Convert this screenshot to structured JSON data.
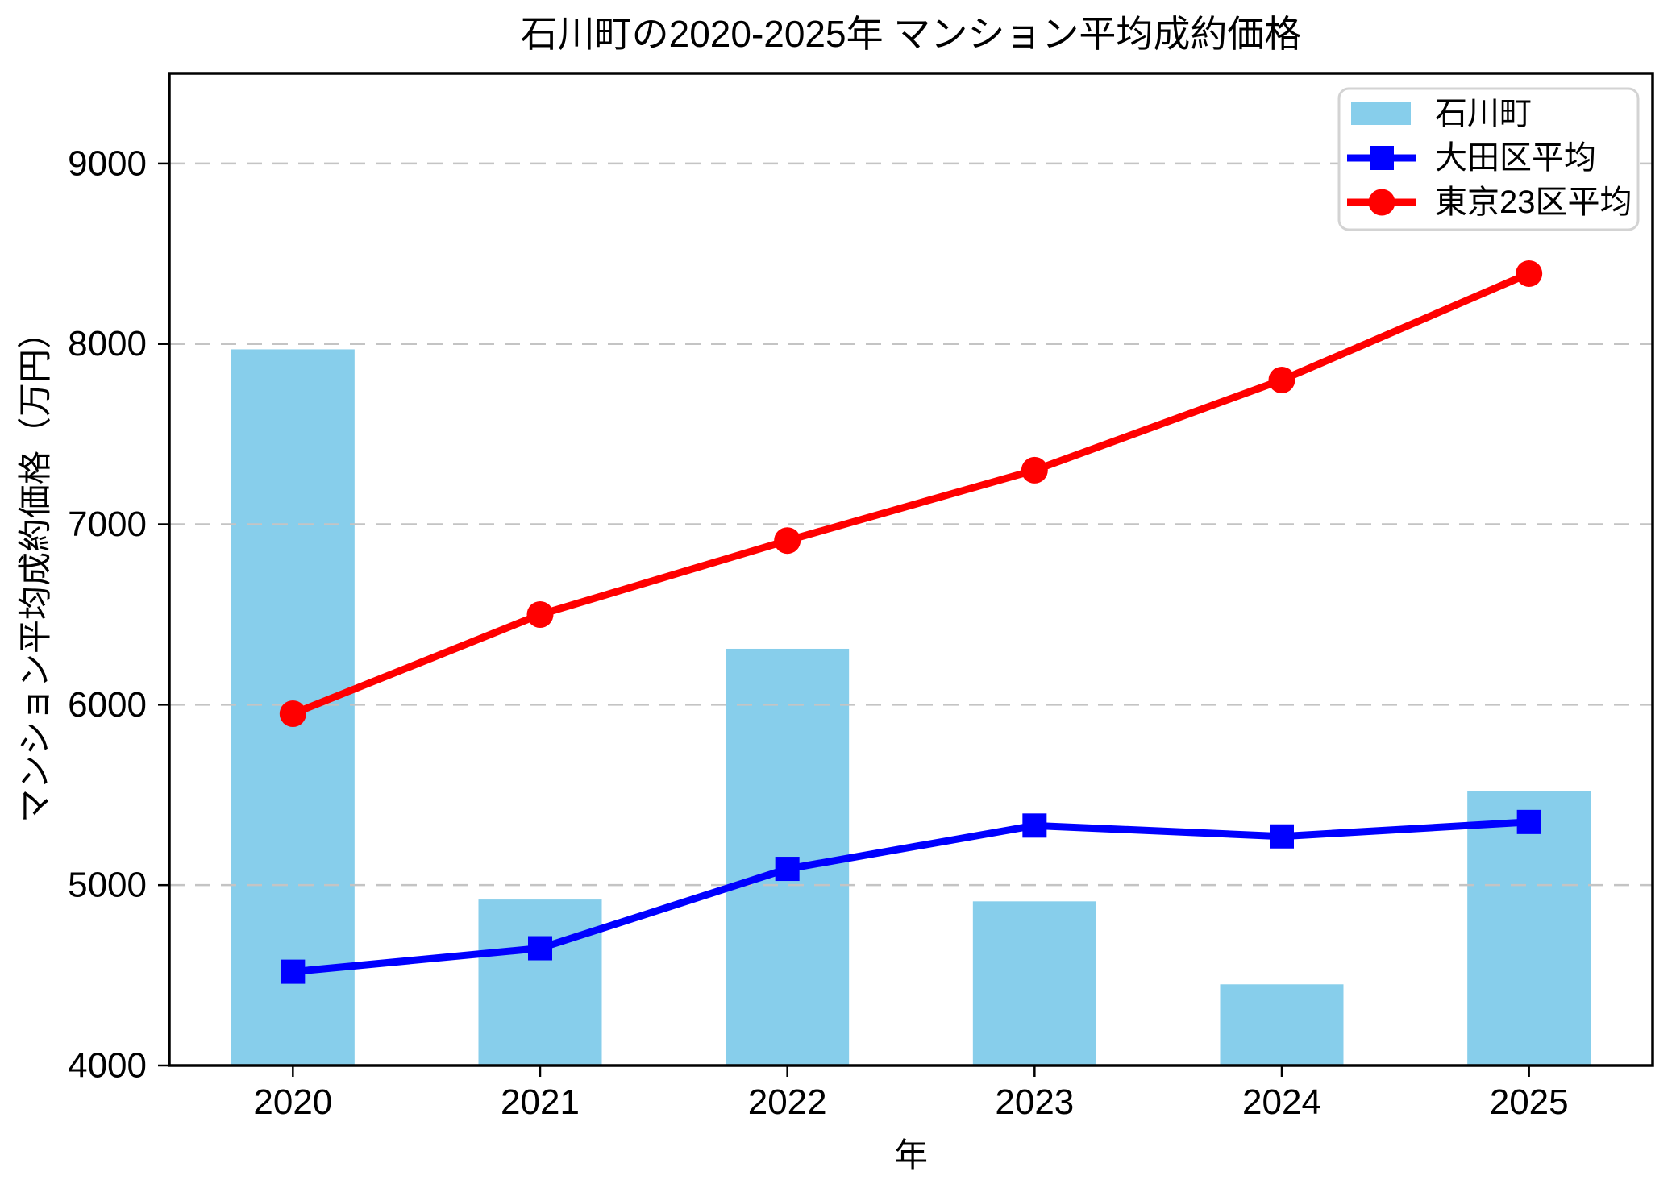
{
  "chart_data": {
    "type": "bar+line",
    "title": "石川町の2020-2025年 マンション平均成約価格",
    "xlabel": "年",
    "ylabel": "マンション平均成約価格（万円）",
    "categories": [
      "2020",
      "2021",
      "2022",
      "2023",
      "2024",
      "2025"
    ],
    "series": [
      {
        "name": "石川町",
        "type": "bar",
        "color": "#87CEEB",
        "values": [
          7970,
          4920,
          6310,
          4910,
          4450,
          5520
        ]
      },
      {
        "name": "大田区平均",
        "type": "line",
        "marker": "square",
        "color": "#0000FF",
        "values": [
          4520,
          4650,
          5090,
          5330,
          5270,
          5350
        ]
      },
      {
        "name": "東京23区平均",
        "type": "line",
        "marker": "circle",
        "color": "#FF0000",
        "values": [
          5950,
          6500,
          6910,
          7300,
          7800,
          8390
        ]
      }
    ],
    "ylim": [
      4000,
      9500
    ],
    "yticks": [
      4000,
      5000,
      6000,
      7000,
      8000,
      9000
    ],
    "grid": "horizontal-dashed",
    "legend_position": "upper-right",
    "style": {
      "background": "#ffffff",
      "grid_color": "#c4c4c4",
      "axis_color": "#000000",
      "legend_border": "#d3d3d3"
    }
  }
}
